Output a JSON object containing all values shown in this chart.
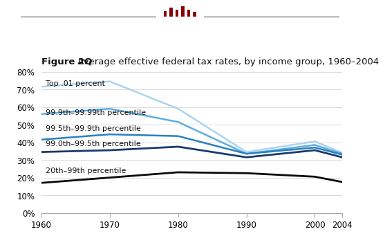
{
  "years": [
    1960,
    1970,
    1980,
    1990,
    2000,
    2004
  ],
  "series": [
    {
      "label": "Top .01 percent",
      "values": [
        71.5,
        74.5,
        59.0,
        34.5,
        40.5,
        34.0
      ],
      "color": "#aad4f0",
      "linewidth": 1.8
    },
    {
      "label": "99.9th–99.99th percentile",
      "values": [
        56.0,
        59.0,
        51.5,
        33.5,
        38.5,
        33.5
      ],
      "color": "#5baee0",
      "linewidth": 1.8
    },
    {
      "label": "99.5th–99.9th percentile",
      "values": [
        41.5,
        44.5,
        43.5,
        33.5,
        37.0,
        33.0
      ],
      "color": "#2980c0",
      "linewidth": 1.8
    },
    {
      "label": "99.0th–99.5th percentile",
      "values": [
        34.5,
        35.5,
        37.5,
        31.5,
        35.5,
        31.5
      ],
      "color": "#1a3a6b",
      "linewidth": 2.0
    },
    {
      "label": "20th–99th percentile",
      "values": [
        17.0,
        20.0,
        23.0,
        22.5,
        20.5,
        17.5
      ],
      "color": "#0a0a0a",
      "linewidth": 2.0
    }
  ],
  "label_y_positions": [
    73.5,
    57.0,
    48.0,
    39.5,
    24.0
  ],
  "title_bold": "Figure 2Q",
  "title_rest": " Average effective federal tax rates, by income group, 1960–2004",
  "xlim": [
    1960,
    2004
  ],
  "ylim": [
    0,
    80
  ],
  "yticks": [
    0,
    10,
    20,
    30,
    40,
    50,
    60,
    70,
    80
  ],
  "xticks": [
    1960,
    1970,
    1980,
    1990,
    2000,
    2004
  ],
  "background_color": "#ffffff",
  "grid_color": "#cccccc",
  "label_fontsize": 8.0,
  "title_fontsize": 9.5,
  "logo_color": "#8b0000",
  "logo_bar_positions": [
    -0.042,
    -0.025,
    -0.008,
    0.009,
    0.026,
    0.043
  ],
  "logo_bar_heights": [
    0.55,
    0.85,
    0.65,
    0.95,
    0.65,
    0.45
  ],
  "logo_bar_width": 0.009
}
